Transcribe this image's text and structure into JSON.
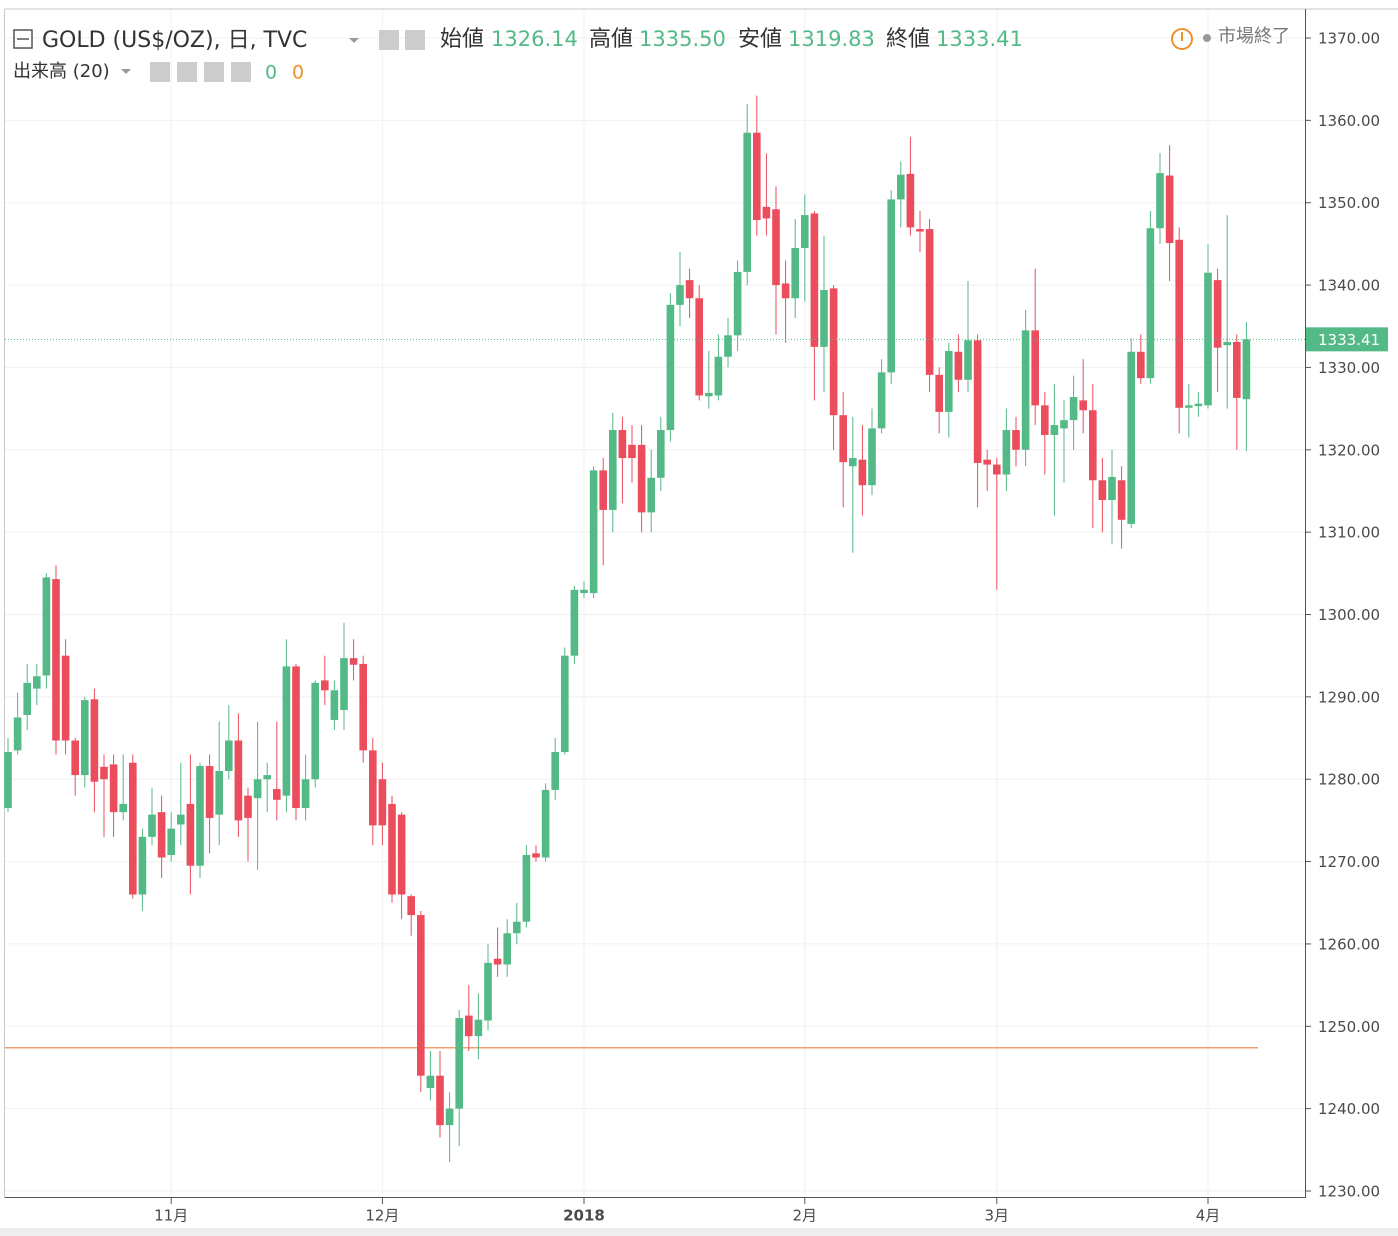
{
  "chart_data": {
    "type": "candlestick",
    "header": {
      "symbol": "GOLD (US$/OZ), 日, TVC",
      "items": [
        {
          "label": "始値",
          "value": "1326.14"
        },
        {
          "label": "高値",
          "value": "1335.50"
        },
        {
          "label": "安値",
          "value": "1319.83"
        },
        {
          "label": "終値",
          "value": "1333.41"
        }
      ],
      "volume": "出来高 (20)",
      "volume_values": [
        0,
        0
      ],
      "status": "市場終了"
    },
    "up_color": "#53b987",
    "down_color": "#eb4d5c",
    "hline": {
      "value": 1247.4,
      "color": "#f0a070"
    },
    "ylim": [
      1230,
      1370
    ],
    "yticks": [
      {
        "value": 1230,
        "label": "1230.00"
      },
      {
        "value": 1240,
        "label": "1240.00"
      },
      {
        "value": 1250,
        "label": "1250.00"
      },
      {
        "value": 1260,
        "label": "1260.00"
      },
      {
        "value": 1270,
        "label": "1270.00"
      },
      {
        "value": 1280,
        "label": "1280.00"
      },
      {
        "value": 1290,
        "label": "1290.00"
      },
      {
        "value": 1300,
        "label": "1300.00"
      },
      {
        "value": 1310,
        "label": "1310.00"
      },
      {
        "value": 1320,
        "label": "1320.00"
      },
      {
        "value": 1330,
        "label": "1330.00"
      },
      {
        "value": 1340,
        "label": "1340.00"
      },
      {
        "value": 1350,
        "label": "1350.00"
      },
      {
        "value": 1360,
        "label": "1360.00"
      },
      {
        "value": 1370,
        "label": "1370.00"
      }
    ],
    "grid": true,
    "categories": [
      null,
      null,
      null,
      null,
      null,
      null,
      null,
      null,
      null,
      null,
      null,
      null,
      null,
      null,
      null,
      null,
      null,
      "11月",
      null,
      null,
      null,
      null,
      null,
      null,
      null,
      null,
      null,
      null,
      null,
      null,
      null,
      null,
      null,
      null,
      null,
      null,
      null,
      null,
      null,
      "12月",
      null,
      null,
      null,
      null,
      null,
      null,
      null,
      null,
      null,
      null,
      null,
      null,
      null,
      null,
      null,
      null,
      null,
      null,
      null,
      null,
      "2018",
      null,
      null,
      null,
      null,
      null,
      null,
      null,
      null,
      null,
      null,
      null,
      null,
      null,
      null,
      null,
      null,
      null,
      null,
      null,
      null,
      null,
      null,
      "2月",
      null,
      null,
      null,
      null,
      null,
      null,
      null,
      null,
      null,
      null,
      null,
      null,
      null,
      null,
      null,
      null,
      null,
      null,
      null,
      "3月",
      null,
      null,
      null,
      null,
      null,
      null,
      null,
      null,
      null,
      null,
      null,
      null,
      null,
      null,
      null,
      null,
      null,
      null,
      null,
      null,
      null,
      "4月",
      null,
      null,
      null,
      null
    ],
    "open": [
      1276.5,
      1283.5,
      1287.8,
      1291,
      1292.6,
      1304.3,
      1295,
      1284.7,
      1280.5,
      1289.7,
      1281.5,
      1281.8,
      1276,
      1282,
      1266,
      1273,
      1276,
      1270.8,
      1274.5,
      1277,
      1269.5,
      1281.6,
      1275.7,
      1281,
      1284.7,
      1278,
      1277.7,
      1280,
      1278.8,
      1278,
      1293.7,
      1276.5,
      1280,
      1292,
      1287.2,
      1288.4,
      1294.7,
      1294,
      1283.5,
      1280,
      1277,
      1275.7,
      1265.8,
      1263.5,
      1242.5,
      1244,
      1238,
      1240,
      1251.3,
      1248.8,
      1250.7,
      1258.2,
      1257.5,
      1261.3,
      1262.7,
      1271,
      1270.5,
      1278.7,
      1283.3,
      1295,
      1302.6,
      1302.6,
      1317.5,
      1312.7,
      1322.4,
      1320.6,
      1320.6,
      1312.4,
      1316.6,
      1322.4,
      1337.6,
      1340.6,
      1338.4,
      1326.5,
      1326.6,
      1331.3,
      1333.9,
      1341.6,
      1358.5,
      1349.5,
      1349.2,
      1340.2,
      1338.4,
      1344.5,
      1348.7,
      1332.5,
      1339.6,
      1324.2,
      1318,
      1318.8,
      1315.7,
      1322.6,
      1329.4,
      1350.4,
      1353.5,
      1346.8,
      1346.8,
      1329.1,
      1324.6,
      1331.9,
      1328.5,
      1333.3,
      1318.8,
      1318.2,
      1317,
      1322.4,
      1320,
      1334.5,
      1325.4,
      1321.8,
      1322.6,
      1323.6,
      1326,
      1324.8,
      1316.3,
      1313.9,
      1316.3,
      1311,
      1331.9,
      1328.7,
      1346.9,
      1353.3,
      1345.5,
      1325.1,
      1325.3,
      1325.4,
      1340.6,
      1332.7,
      1333.1,
      1326.14
    ],
    "high": [
      1285,
      1290.5,
      1294,
      1294,
      1305,
      1306,
      1297,
      1285,
      1290,
      1291,
      1283,
      1283,
      1283,
      1283,
      1274,
      1279,
      1278,
      1276,
      1282,
      1283,
      1282,
      1283,
      1287,
      1289,
      1288,
      1279,
      1287,
      1282,
      1287,
      1297,
      1294,
      1283,
      1292,
      1295,
      1292,
      1299,
      1297,
      1295,
      1285,
      1282,
      1278,
      1276,
      1266,
      1264,
      1247,
      1247,
      1242,
      1252,
      1255,
      1254,
      1260,
      1262,
      1263,
      1265,
      1272,
      1272,
      1279.5,
      1285,
      1296,
      1303.5,
      1304,
      1318,
      1319,
      1324.5,
      1324,
      1323,
      1323,
      1320,
      1324,
      1339,
      1344,
      1342,
      1340,
      1332,
      1334,
      1336,
      1343,
      1362,
      1363,
      1356,
      1352,
      1343,
      1348,
      1351,
      1349,
      1346,
      1340,
      1327,
      1324,
      1323,
      1325,
      1331,
      1351.5,
      1355,
      1358,
      1349,
      1348,
      1330,
      1333,
      1334,
      1340.5,
      1334,
      1320,
      1319,
      1325,
      1324,
      1337,
      1342,
      1327,
      1328,
      1326,
      1329,
      1331,
      1328,
      1319,
      1320,
      1318,
      1333.5,
      1334,
      1349,
      1356,
      1357,
      1347,
      1328,
      1327,
      1345,
      1342,
      1348.5,
      1334,
      1335.5
    ],
    "low": [
      1276,
      1283,
      1286,
      1289,
      1291,
      1283,
      1283,
      1278,
      1279,
      1276,
      1273,
      1273,
      1275,
      1265.5,
      1264,
      1272,
      1268,
      1270,
      1272,
      1266,
      1268,
      1271,
      1272,
      1280,
      1273,
      1270,
      1269,
      1276,
      1275,
      1276,
      1275,
      1275,
      1279,
      1289,
      1286,
      1286,
      1292,
      1282,
      1272,
      1272,
      1265,
      1263,
      1261,
      1242,
      1241,
      1236.5,
      1233.5,
      1235.5,
      1247,
      1246,
      1249.5,
      1256,
      1256,
      1260,
      1262,
      1270,
      1270,
      1277.5,
      1283,
      1294,
      1302,
      1302,
      1306,
      1310,
      1313.5,
      1316,
      1310,
      1310,
      1315,
      1321,
      1335,
      1336,
      1326,
      1325,
      1326,
      1330,
      1332,
      1340,
      1346,
      1346,
      1334,
      1333,
      1336,
      1338,
      1326,
      1327,
      1320,
      1313,
      1307.5,
      1312,
      1314.5,
      1322,
      1328,
      1347,
      1346,
      1344,
      1327,
      1322,
      1321.5,
      1327,
      1327,
      1313,
      1315,
      1303,
      1315,
      1318,
      1318,
      1323,
      1317,
      1312,
      1316,
      1320,
      1322,
      1310.5,
      1310,
      1308.5,
      1308,
      1310.5,
      1328,
      1328,
      1345,
      1340.5,
      1322,
      1321.5,
      1324,
      1325,
      1327,
      1325,
      1320,
      1319.83
    ],
    "close": [
      1283.3,
      1287.5,
      1291.7,
      1292.5,
      1304.5,
      1284.7,
      1284.7,
      1280.5,
      1289.6,
      1279.7,
      1280,
      1276,
      1277,
      1266,
      1273,
      1275.7,
      1270.5,
      1274,
      1275.7,
      1269.5,
      1281.6,
      1275.3,
      1281,
      1284.7,
      1275,
      1275.3,
      1280,
      1280.5,
      1277.5,
      1293.7,
      1276.5,
      1280,
      1291.7,
      1290.8,
      1290.8,
      1294.7,
      1293.9,
      1283.5,
      1274.4,
      1274.4,
      1266,
      1266,
      1263.5,
      1244,
      1244,
      1238,
      1240,
      1251,
      1248.8,
      1250.8,
      1257.7,
      1257.5,
      1261.3,
      1262.7,
      1270.8,
      1270.5,
      1278.7,
      1283.3,
      1295,
      1303,
      1303,
      1317.5,
      1312.7,
      1322.4,
      1319,
      1319,
      1312.4,
      1316.6,
      1322.4,
      1337.6,
      1340,
      1338.4,
      1326.6,
      1326.9,
      1331.3,
      1333.9,
      1341.6,
      1358.5,
      1347.9,
      1348.1,
      1340,
      1338.4,
      1344.5,
      1348.5,
      1332.5,
      1339.4,
      1324.2,
      1318.5,
      1319,
      1315.7,
      1322.6,
      1329.4,
      1350.4,
      1353.4,
      1347,
      1346.5,
      1329.1,
      1324.6,
      1332,
      1328.5,
      1333.3,
      1318.4,
      1318.2,
      1317,
      1322.4,
      1320,
      1334.5,
      1325.4,
      1321.8,
      1323,
      1323.6,
      1326.4,
      1324.8,
      1316.3,
      1313.9,
      1316.7,
      1311.5,
      1331.9,
      1328.7,
      1346.9,
      1353.6,
      1345.1,
      1325.1,
      1325.4,
      1325.6,
      1341.5,
      1332.4,
      1333.1,
      1326.3,
      1333.41
    ]
  }
}
